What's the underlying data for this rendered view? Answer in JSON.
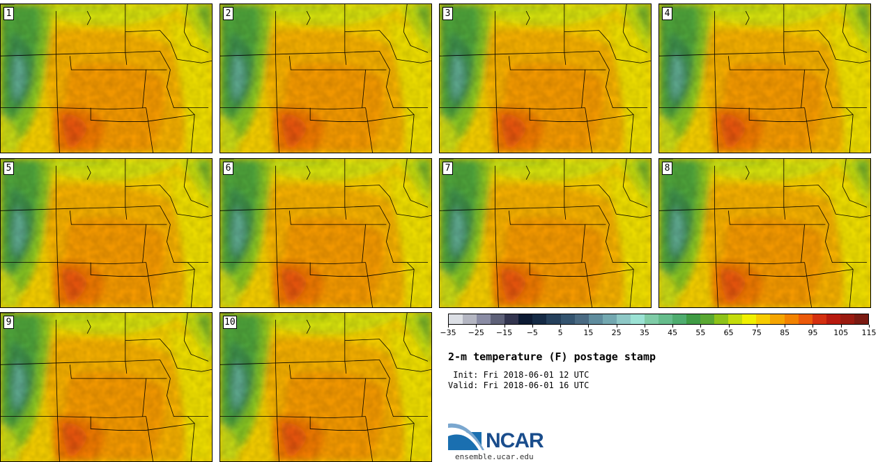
{
  "product": {
    "title": "2-m temperature (F) postage stamp",
    "init_line": " Init: Fri 2018-06-01 12 UTC",
    "valid_line": "Valid: Fri 2018-06-01 16 UTC"
  },
  "members": [
    "1",
    "2",
    "3",
    "4",
    "5",
    "6",
    "7",
    "8",
    "9",
    "10"
  ],
  "colorbar": {
    "colors": [
      "#dcdfe5",
      "#b4b6c2",
      "#8a8ca4",
      "#5e6178",
      "#33354f",
      "#0c1a33",
      "#152a45",
      "#25405c",
      "#34546f",
      "#4a6a82",
      "#5f8c9d",
      "#73a8b0",
      "#8ec8c6",
      "#9be2d4",
      "#7fcca7",
      "#66bd8c",
      "#4fad6f",
      "#3f9b44",
      "#5aa832",
      "#8ec319",
      "#c4dc0c",
      "#f0f000",
      "#f7cc00",
      "#f5a500",
      "#f28300",
      "#ec5a0a",
      "#d43010",
      "#b81a0f",
      "#9a1a10",
      "#7a1a12"
    ],
    "tick_labels": [
      "−35",
      "−25",
      "−15",
      "−5",
      "5",
      "15",
      "25",
      "35",
      "45",
      "55",
      "65",
      "75",
      "85",
      "95",
      "105",
      "115"
    ]
  },
  "logo": {
    "name": "NCAR",
    "url": "ensemble.ucar.edu"
  }
}
